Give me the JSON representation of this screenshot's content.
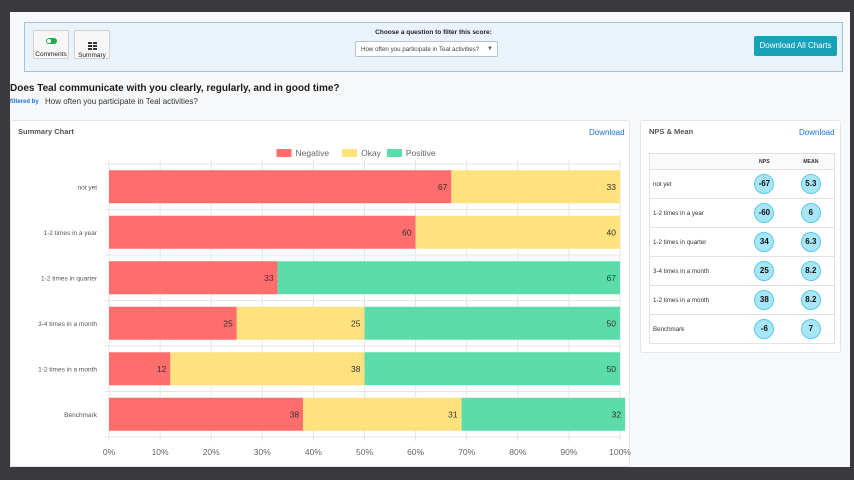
{
  "toolbar": {
    "comments_label": "Comments",
    "summary_label": "Summary",
    "filter_prompt": "Choose a question to filter this score:",
    "filter_select_value": "How often you participate in Teal activities?",
    "download_all_label": "Download All Charts"
  },
  "heading": {
    "question": "Does Teal communicate with you clearly, regularly, and in good time?",
    "filtered_by_label": "filtered by",
    "filtered_by_value": "How often you participate in Teal activities?"
  },
  "summary_card": {
    "title": "Summary Chart",
    "download_label": "Download"
  },
  "nps_card": {
    "title": "NPS & Mean",
    "download_label": "Download",
    "col_nps": "NPS",
    "col_mean": "MEAN",
    "rows": [
      {
        "label": "not yet",
        "nps": "-67",
        "mean": "5.3"
      },
      {
        "label": "1-2 times in a year",
        "nps": "-60",
        "mean": "6"
      },
      {
        "label": "1-2 times in quarter",
        "nps": "34",
        "mean": "6.3"
      },
      {
        "label": "3-4 times in a month",
        "nps": "25",
        "mean": "8.2"
      },
      {
        "label": "1-2 times in a month",
        "nps": "38",
        "mean": "8.2"
      },
      {
        "label": "Benchmark",
        "nps": "-6",
        "mean": "7"
      }
    ]
  },
  "chart_data": {
    "type": "bar",
    "orientation": "horizontal",
    "stacked": true,
    "categories": [
      "not yet",
      "1-2 times in a year",
      "1-2 times in quarter",
      "3-4 times in a month",
      "1-2 times in a month",
      "Benchmark"
    ],
    "series": [
      {
        "name": "Negative",
        "color": "#ff6d6d",
        "values": [
          67,
          60,
          33,
          25,
          12,
          38
        ]
      },
      {
        "name": "Okay",
        "color": "#fee27d",
        "values": [
          33,
          40,
          0,
          25,
          38,
          31
        ]
      },
      {
        "name": "Positive",
        "color": "#5cdcaa",
        "values": [
          0,
          0,
          67,
          50,
          50,
          32
        ]
      }
    ],
    "xlim": [
      0,
      100
    ],
    "xticks": [
      "0%",
      "10%",
      "20%",
      "30%",
      "40%",
      "50%",
      "60%",
      "70%",
      "80%",
      "90%",
      "100%"
    ],
    "legend_position": "top",
    "grid": true
  }
}
